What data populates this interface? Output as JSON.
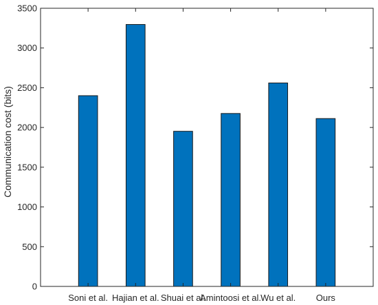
{
  "chart_data": {
    "type": "bar",
    "title": "",
    "xlabel": "",
    "ylabel": "Communication cost (bits)",
    "categories": [
      "Soni et al.",
      "Hajian et al.",
      "Shuai et al.",
      "Amintoosi et al.",
      "Wu et al.",
      "Ours"
    ],
    "values": [
      2400,
      3296,
      1952,
      2176,
      2560,
      2112
    ],
    "ylim": [
      0,
      3500
    ],
    "yticks": [
      0,
      500,
      1000,
      1500,
      2000,
      2500,
      3000,
      3500
    ],
    "grid": false,
    "legend": "none",
    "bar_color": "#0072BD",
    "bar_edge_color": "#1a1a1a",
    "axis_color": "#262626"
  }
}
